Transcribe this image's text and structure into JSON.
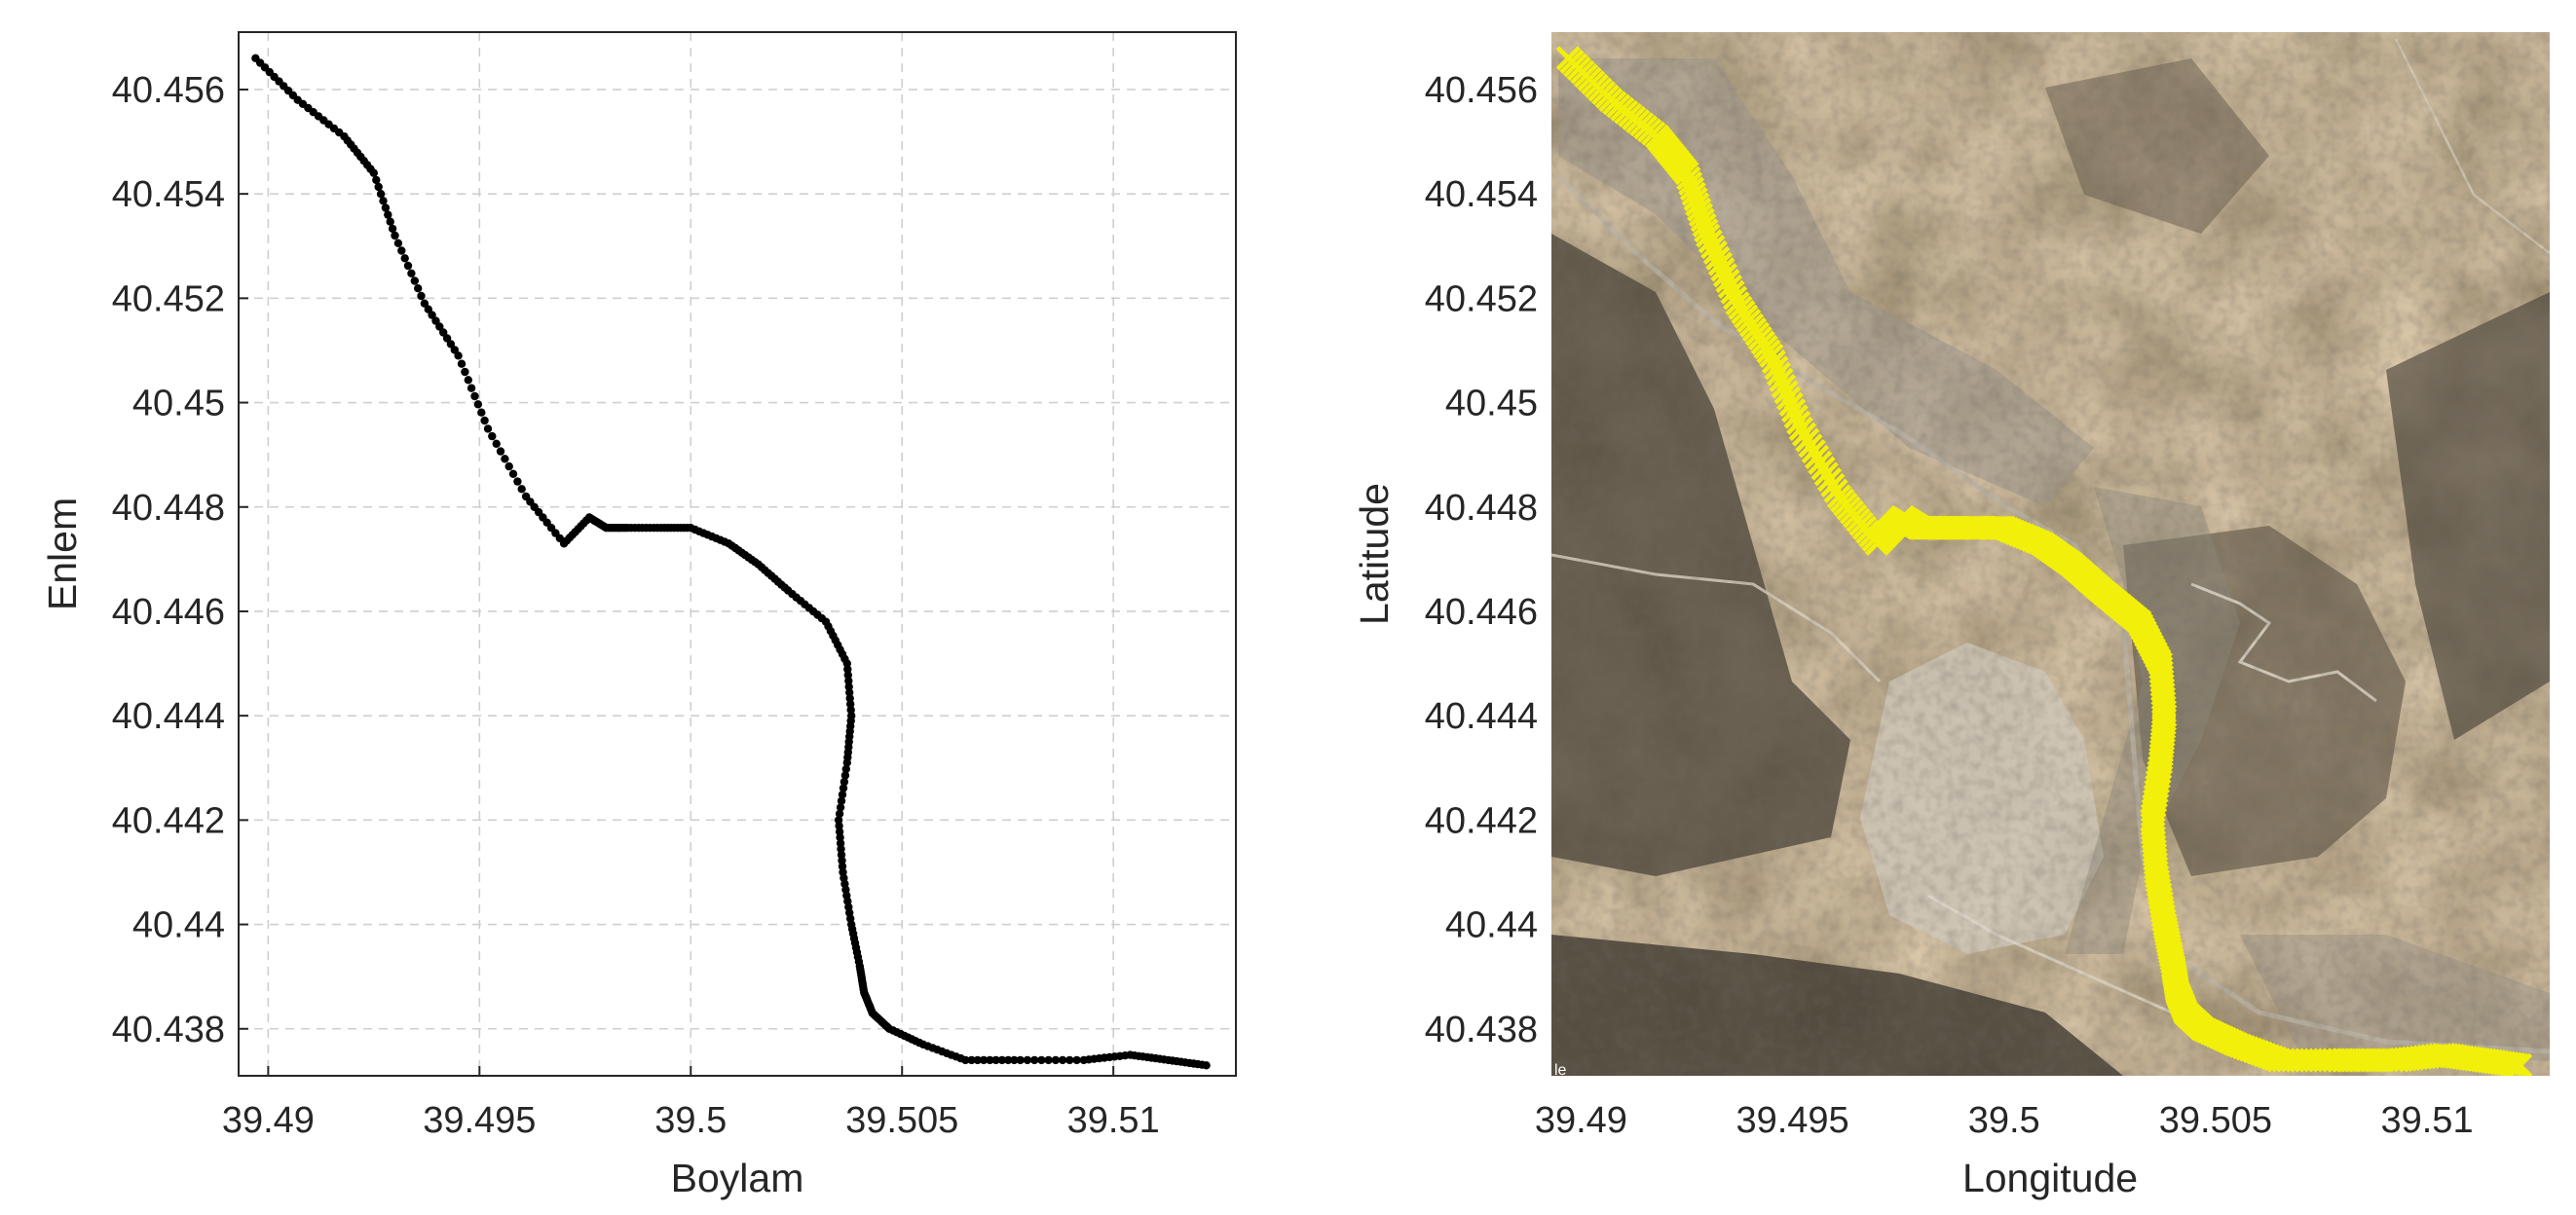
{
  "chart_data": [
    {
      "type": "scatter",
      "panel": "left",
      "xlabel": "Boylam",
      "ylabel": "Enlem",
      "xlim": [
        39.4893,
        39.5129
      ],
      "ylim": [
        40.4371,
        40.4571
      ],
      "xticks": [
        39.49,
        39.495,
        39.5,
        39.505,
        39.51
      ],
      "xtick_labels": [
        "39.49",
        "39.495",
        "39.5",
        "39.505",
        "39.51"
      ],
      "yticks": [
        40.438,
        40.44,
        40.442,
        40.444,
        40.446,
        40.448,
        40.45,
        40.452,
        40.454,
        40.456
      ],
      "ytick_labels": [
        "40.438",
        "40.44",
        "40.442",
        "40.444",
        "40.446",
        "40.448",
        "40.45",
        "40.452",
        "40.454",
        "40.456"
      ],
      "grid": true,
      "marker_color": "#000000",
      "background": "#ffffff",
      "track": {
        "x": [
          39.4897,
          39.4907,
          39.4918,
          39.4925,
          39.493,
          39.4937,
          39.4945,
          39.4952,
          39.4961,
          39.497,
          39.4976,
          39.498,
          39.4985,
          39.4993,
          39.5,
          39.5009,
          39.5016,
          39.5023,
          39.5032,
          39.5037,
          39.5038,
          39.5037,
          39.5035,
          39.5036,
          39.5038,
          39.504,
          39.5041,
          39.5043,
          39.5047,
          39.5055,
          39.5065,
          39.5078,
          39.5093,
          39.5104,
          39.5113,
          39.5122
        ],
        "y": [
          40.4566,
          40.4558,
          40.4551,
          40.4544,
          40.4532,
          40.4519,
          40.4509,
          40.4495,
          40.4482,
          40.4473,
          40.4478,
          40.4476,
          40.4476,
          40.4476,
          40.4476,
          40.4473,
          40.4469,
          40.4464,
          40.4458,
          40.445,
          40.444,
          40.4431,
          40.442,
          40.441,
          40.44,
          40.4392,
          40.4387,
          40.4383,
          40.438,
          40.4377,
          40.4374,
          40.4374,
          40.4374,
          40.4375,
          40.4374,
          40.4373
        ]
      }
    },
    {
      "type": "scatter",
      "panel": "right",
      "xlabel": "Longitude",
      "ylabel": "Latitude",
      "xlim": [
        39.4893,
        39.5129
      ],
      "ylim": [
        40.4371,
        40.4571
      ],
      "xticks": [
        39.49,
        39.495,
        39.5,
        39.505,
        39.51
      ],
      "xtick_labels": [
        "39.49",
        "39.495",
        "39.5",
        "39.505",
        "39.51"
      ],
      "yticks": [
        40.438,
        40.44,
        40.442,
        40.444,
        40.446,
        40.448,
        40.45,
        40.452,
        40.454,
        40.456
      ],
      "ytick_labels": [
        "40.438",
        "40.44",
        "40.442",
        "40.444",
        "40.446",
        "40.448",
        "40.45",
        "40.452",
        "40.454",
        "40.456"
      ],
      "grid": false,
      "marker_color": "#f2ef0a",
      "background": "satellite-imagery",
      "track": "same as left panel"
    }
  ]
}
